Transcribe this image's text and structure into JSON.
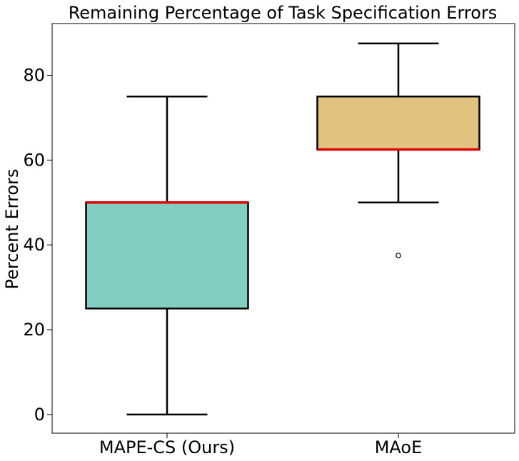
{
  "chart_data": {
    "type": "box",
    "title": "Remaining Percentage of Task Specification Errors",
    "xlabel": "",
    "ylabel": "Percent Errors",
    "ylim": [
      -4.4,
      92.2
    ],
    "yticks": [
      0,
      20,
      40,
      60,
      80
    ],
    "grid": false,
    "categories": [
      "MAPE-CS (Ours)",
      "MAoE"
    ],
    "boxes": [
      {
        "name": "MAPE-CS (Ours)",
        "whisker_low": 0,
        "q1": 25,
        "median": 50,
        "q3": 50,
        "whisker_high": 75,
        "outliers": [],
        "color": "#81cfc1"
      },
      {
        "name": "MAoE",
        "whisker_low": 50,
        "q1": 62.5,
        "median": 62.5,
        "q3": 75,
        "whisker_high": 87.5,
        "outliers": [
          37.5
        ],
        "color": "#e1c27e"
      }
    ],
    "median_color": "#e00000",
    "edge_color": "#000000"
  }
}
